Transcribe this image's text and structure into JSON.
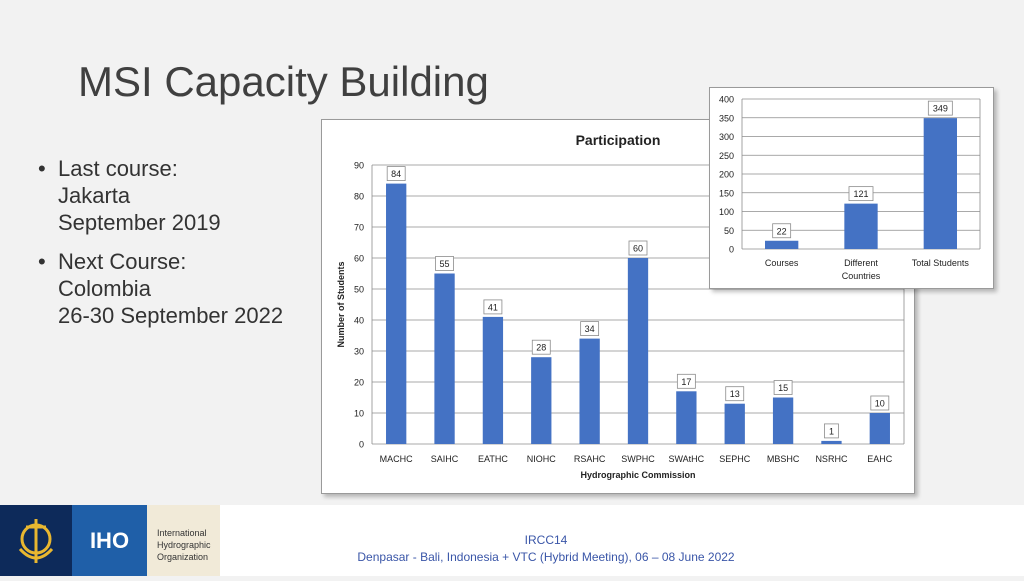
{
  "slide": {
    "title": "MSI Capacity Building",
    "bullets": [
      {
        "lines": [
          "Last course:",
          "Jakarta",
          "September 2019"
        ]
      },
      {
        "lines": [
          "Next Course:",
          "Colombia",
          "26-30 September 2022"
        ]
      }
    ]
  },
  "footer": {
    "logo_abbr": "IHO",
    "logo_name": [
      "International",
      "Hydrographic",
      "Organization"
    ],
    "line1": "IRCC14",
    "line2": "Denpasar - Bali, Indonesia + VTC (Hybrid Meeting), 06 – 08 June 2022"
  },
  "chart_data": [
    {
      "type": "bar",
      "title": "Participation",
      "xlabel": "Hydrographic Commission",
      "ylabel": "Number of Students",
      "categories": [
        "MACHC",
        "SAIHC",
        "EATHC",
        "NIOHC",
        "RSAHC",
        "SWPHC",
        "SWAtHC",
        "SEPHC",
        "MBSHC",
        "NSRHC",
        "EAHC"
      ],
      "values": [
        84,
        55,
        41,
        28,
        34,
        60,
        17,
        13,
        15,
        1,
        10
      ],
      "ylim": [
        0,
        90
      ],
      "yticks": [
        0,
        10,
        20,
        30,
        40,
        50,
        60,
        70,
        80,
        90
      ],
      "grid": true,
      "bar_color": "#4472c4"
    },
    {
      "type": "bar",
      "title": "",
      "categories": [
        [
          "Courses"
        ],
        [
          "Different",
          "Countries"
        ],
        [
          "Total Students"
        ]
      ],
      "values": [
        22,
        121,
        349
      ],
      "ylim": [
        0,
        400
      ],
      "yticks": [
        0,
        50,
        100,
        150,
        200,
        250,
        300,
        350,
        400
      ],
      "grid": true,
      "bar_color": "#4472c4"
    }
  ]
}
